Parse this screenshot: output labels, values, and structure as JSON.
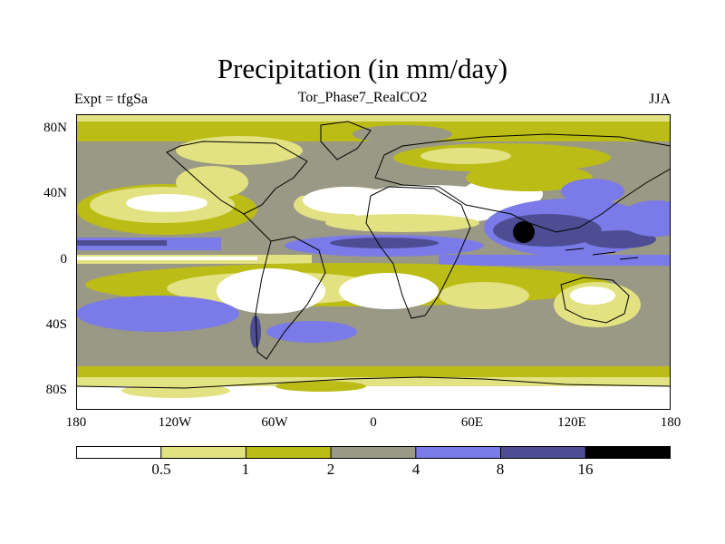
{
  "title": "Precipitation (in mm/day)",
  "left_subtitle": "Expt = tfgSa",
  "center_subtitle": "Tor_Phase7_RealCO2",
  "right_subtitle": "JJA",
  "y_ticks": [
    "80N",
    "40N",
    "0",
    "40S",
    "80S"
  ],
  "x_ticks": [
    "180",
    "120W",
    "60W",
    "0",
    "60E",
    "120E",
    "180"
  ],
  "legend": {
    "labels": [
      "0.5",
      "1",
      "2",
      "4",
      "8",
      "16"
    ],
    "colors": [
      "#ffffff",
      "#e3e282",
      "#bcbc16",
      "#9a9985",
      "#7a7ae8",
      "#4e4d94",
      "#000000"
    ]
  },
  "palette": {
    "c0": "#ffffff",
    "c1": "#e3e282",
    "c2": "#bcbc16",
    "c3": "#9a9985",
    "c4": "#7a7ae8",
    "c5": "#4e4d94",
    "c6": "#000000"
  }
}
